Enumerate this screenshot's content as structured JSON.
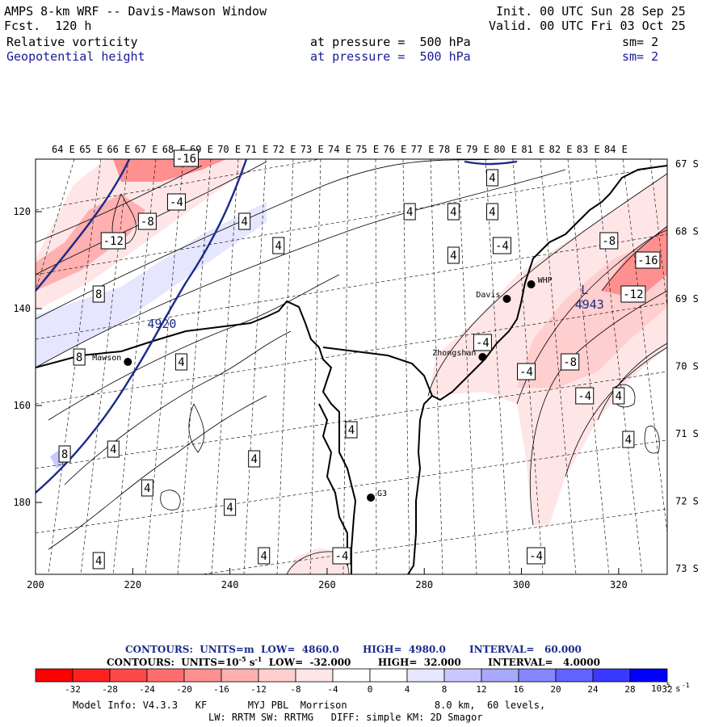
{
  "header": {
    "title": "AMPS 8-km WRF -- Davis-Mawson Window",
    "forecast": "Fcst.  120 h",
    "init": "Init. 00 UTC Sun 28 Sep 25",
    "valid": "Valid. 00 UTC Fri 03 Oct 25",
    "field1": {
      "name": "Relative vorticity",
      "level": "at pressure =  500 hPa",
      "smooth": "sm= 2"
    },
    "field2": {
      "name": "Geopotential height",
      "level": "at pressure =  500 hPa",
      "smooth": "sm= 2"
    }
  },
  "top_lon_labels": [
    "64 E",
    "65 E",
    "66 E",
    "67 E",
    "68 E",
    "69 E",
    "70 E",
    "71 E",
    "72 E",
    "73 E",
    "74 E",
    "75 E",
    "76 E",
    "77 E",
    "78 E",
    "79 E",
    "80 E",
    "81 E",
    "82 E",
    "83 E",
    "84 E"
  ],
  "right_lat_labels": [
    "67 S",
    "68 S",
    "69 S",
    "70 S",
    "71 S",
    "72 S",
    "73 S"
  ],
  "x_ticks": [
    "200",
    "220",
    "240",
    "260",
    "280",
    "300",
    "320"
  ],
  "y_ticks": [
    "120",
    "140",
    "160",
    "180"
  ],
  "stations": [
    {
      "name": "Mawson",
      "gx": 219,
      "gy": 151
    },
    {
      "name": "Davis",
      "gx": 297,
      "gy": 138
    },
    {
      "name": "WHP",
      "gx": 302,
      "gy": 135
    },
    {
      "name": "Zhongshan",
      "gx": 292,
      "gy": 150
    },
    {
      "name": "G3",
      "gx": 269,
      "gy": 179
    }
  ],
  "height_labels": [
    {
      "text": "4920",
      "gx": 226,
      "gy": 144
    },
    {
      "text": "L",
      "gx": 313,
      "gy": 137
    },
    {
      "text": "4943",
      "gx": 314,
      "gy": 140
    }
  ],
  "vort_labels": [
    {
      "text": "-16",
      "gx": 231,
      "gy": 109
    },
    {
      "text": "-4",
      "gx": 229,
      "gy": 118
    },
    {
      "text": "-8",
      "gx": 223,
      "gy": 122
    },
    {
      "text": "-12",
      "gx": 216,
      "gy": 126
    },
    {
      "text": "8",
      "gx": 213,
      "gy": 137
    },
    {
      "text": "8",
      "gx": 209,
      "gy": 150
    },
    {
      "text": "8",
      "gx": 206,
      "gy": 170
    },
    {
      "text": "4",
      "gx": 243,
      "gy": 122
    },
    {
      "text": "4",
      "gx": 250,
      "gy": 127
    },
    {
      "text": "4",
      "gx": 277,
      "gy": 120
    },
    {
      "text": "4",
      "gx": 286,
      "gy": 120
    },
    {
      "text": "4",
      "gx": 294,
      "gy": 120
    },
    {
      "text": "4",
      "gx": 294,
      "gy": 113
    },
    {
      "text": "4",
      "gx": 286,
      "gy": 129
    },
    {
      "text": "4",
      "gx": 230,
      "gy": 151
    },
    {
      "text": "4",
      "gx": 216,
      "gy": 169
    },
    {
      "text": "4",
      "gx": 223,
      "gy": 177
    },
    {
      "text": "4",
      "gx": 245,
      "gy": 171
    },
    {
      "text": "4",
      "gx": 240,
      "gy": 181
    },
    {
      "text": "4",
      "gx": 247,
      "gy": 191
    },
    {
      "text": "4",
      "gx": 213,
      "gy": 192
    },
    {
      "text": "4",
      "gx": 265,
      "gy": 165
    },
    {
      "text": "-4",
      "gx": 296,
      "gy": 127
    },
    {
      "text": "-8",
      "gx": 318,
      "gy": 126
    },
    {
      "text": "-16",
      "gx": 326,
      "gy": 130
    },
    {
      "text": "-12",
      "gx": 323,
      "gy": 137
    },
    {
      "text": "-4",
      "gx": 292,
      "gy": 147
    },
    {
      "text": "-4",
      "gx": 301,
      "gy": 153
    },
    {
      "text": "-8",
      "gx": 310,
      "gy": 151
    },
    {
      "text": "-4",
      "gx": 313,
      "gy": 158
    },
    {
      "text": "4",
      "gx": 320,
      "gy": 158
    },
    {
      "text": "4",
      "gx": 322,
      "gy": 167
    },
    {
      "text": "-4",
      "gx": 263,
      "gy": 191
    },
    {
      "text": "-4",
      "gx": 303,
      "gy": 191
    }
  ],
  "colorbar": {
    "values": [
      "-32",
      "-28",
      "-24",
      "-20",
      "-16",
      "-12",
      "-8",
      "-4",
      "0",
      "4",
      "8",
      "12",
      "16",
      "20",
      "24",
      "28",
      "32"
    ],
    "colors": [
      "#ff0000",
      "#ff2020",
      "#ff4848",
      "#ff6e6e",
      "#ff9090",
      "#ffb0b0",
      "#ffcece",
      "#ffe6e6",
      "#ffffff",
      "#ffffff",
      "#e6e6ff",
      "#c8c8ff",
      "#a8a8ff",
      "#8686ff",
      "#6262ff",
      "#3a3aff",
      "#0000ff"
    ],
    "unit": "10",
    "unit_exp": "-5",
    "unit_suffix": "s",
    "unit_suffix_exp": "-1"
  },
  "contours": {
    "line1": "CONTOURS:  UNITS=m  LOW=  4860.0       HIGH=  4980.0       INTERVAL=   60.000",
    "line2": "CONTOURS:  UNITS=10",
    "line2_exp": "-5",
    "line2_mid": " s",
    "line2_exp2": "-1",
    "line2_end": "  LOW=  -32.000        HIGH=  32.000        INTERVAL=   4.0000"
  },
  "model_info": {
    "line1": "Model Info: V4.3.3   KF       MYJ PBL  Morrison               8.0 km,  60 levels,",
    "line2": "LW: RRTM SW: RRTMG   DIFF: simple KM: 2D Smagor"
  },
  "colors": {
    "height_contour": "#1a2a8a",
    "station": "#000000"
  }
}
